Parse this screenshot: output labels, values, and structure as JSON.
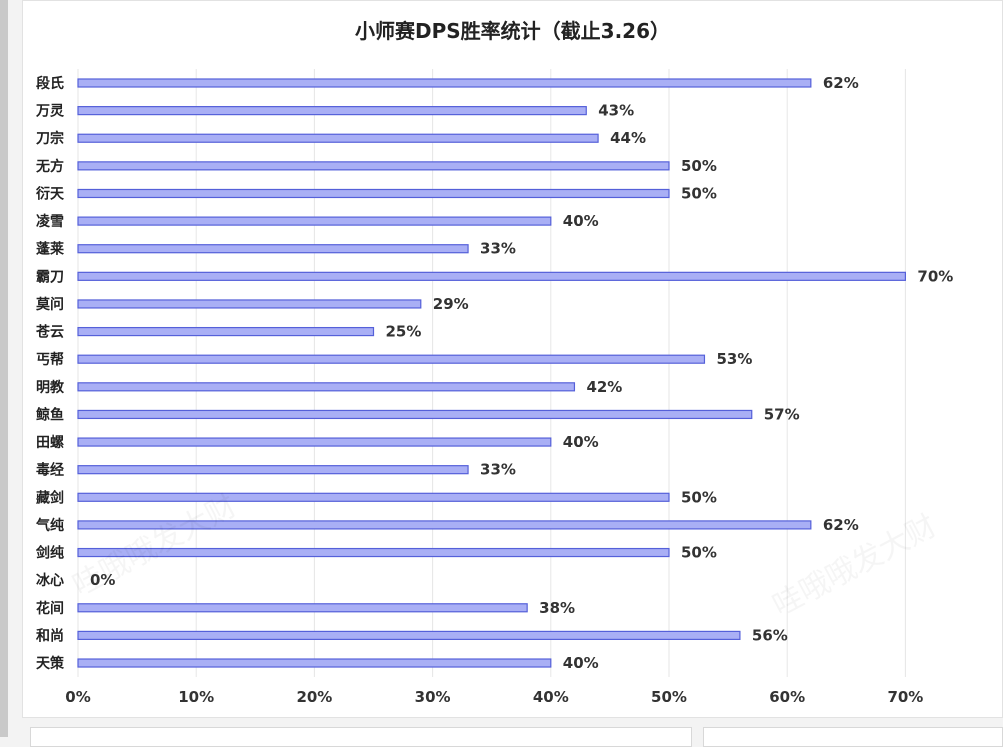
{
  "chart_data": {
    "type": "bar",
    "orientation": "horizontal",
    "title": "小师赛DPS胜率统计（截止3.26）",
    "categories": [
      "段氏",
      "万灵",
      "刀宗",
      "无方",
      "衍天",
      "凌雪",
      "蓬莱",
      "霸刀",
      "莫问",
      "苍云",
      "丐帮",
      "明教",
      "鲸鱼",
      "田螺",
      "毒经",
      "藏剑",
      "气纯",
      "剑纯",
      "冰心",
      "花间",
      "和尚",
      "天策"
    ],
    "values": [
      62,
      43,
      44,
      50,
      50,
      40,
      33,
      70,
      29,
      25,
      53,
      42,
      57,
      40,
      33,
      50,
      62,
      50,
      0,
      38,
      56,
      40
    ],
    "value_labels": [
      "62%",
      "43%",
      "44%",
      "50%",
      "50%",
      "40%",
      "33%",
      "70%",
      "29%",
      "25%",
      "53%",
      "42%",
      "57%",
      "40%",
      "33%",
      "50%",
      "62%",
      "50%",
      "0%",
      "38%",
      "56%",
      "40%"
    ],
    "x_ticks": [
      "0%",
      "10%",
      "20%",
      "30%",
      "40%",
      "50%",
      "60%",
      "70%"
    ],
    "xlim": [
      0,
      70
    ],
    "xlabel": "",
    "ylabel": "",
    "grid": "vertical",
    "bar_fill": "#a9aff5",
    "bar_stroke": "#5560d9"
  },
  "watermark": "哇哦哦发大财"
}
